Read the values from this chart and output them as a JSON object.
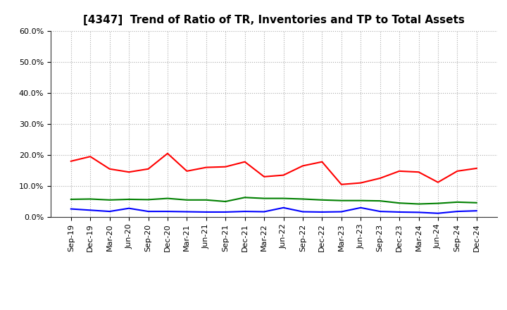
{
  "title": "[4347]  Trend of Ratio of TR, Inventories and TP to Total Assets",
  "x_labels": [
    "Sep-19",
    "Dec-19",
    "Mar-20",
    "Jun-20",
    "Sep-20",
    "Dec-20",
    "Mar-21",
    "Jun-21",
    "Sep-21",
    "Dec-21",
    "Mar-22",
    "Jun-22",
    "Sep-22",
    "Dec-22",
    "Mar-23",
    "Jun-23",
    "Sep-23",
    "Dec-23",
    "Mar-24",
    "Jun-24",
    "Sep-24",
    "Dec-24"
  ],
  "trade_receivables": [
    0.18,
    0.195,
    0.155,
    0.145,
    0.155,
    0.205,
    0.148,
    0.16,
    0.162,
    0.178,
    0.13,
    0.135,
    0.165,
    0.178,
    0.105,
    0.11,
    0.125,
    0.148,
    0.145,
    0.112,
    0.148,
    0.157
  ],
  "inventories": [
    0.026,
    0.022,
    0.018,
    0.028,
    0.018,
    0.018,
    0.017,
    0.016,
    0.016,
    0.018,
    0.017,
    0.03,
    0.017,
    0.016,
    0.017,
    0.03,
    0.018,
    0.016,
    0.015,
    0.012,
    0.018,
    0.02
  ],
  "trade_payables": [
    0.057,
    0.058,
    0.055,
    0.057,
    0.056,
    0.06,
    0.055,
    0.055,
    0.05,
    0.063,
    0.06,
    0.06,
    0.058,
    0.055,
    0.053,
    0.053,
    0.052,
    0.045,
    0.042,
    0.044,
    0.048,
    0.046
  ],
  "tr_color": "#FF0000",
  "inv_color": "#0000FF",
  "tp_color": "#008000",
  "ylim": [
    0.0,
    0.6
  ],
  "yticks": [
    0.0,
    0.1,
    0.2,
    0.3,
    0.4,
    0.5,
    0.6
  ],
  "background_color": "#FFFFFF",
  "grid_color": "#aaaaaa",
  "title_fontsize": 11,
  "legend_fontsize": 9,
  "tick_fontsize": 8
}
